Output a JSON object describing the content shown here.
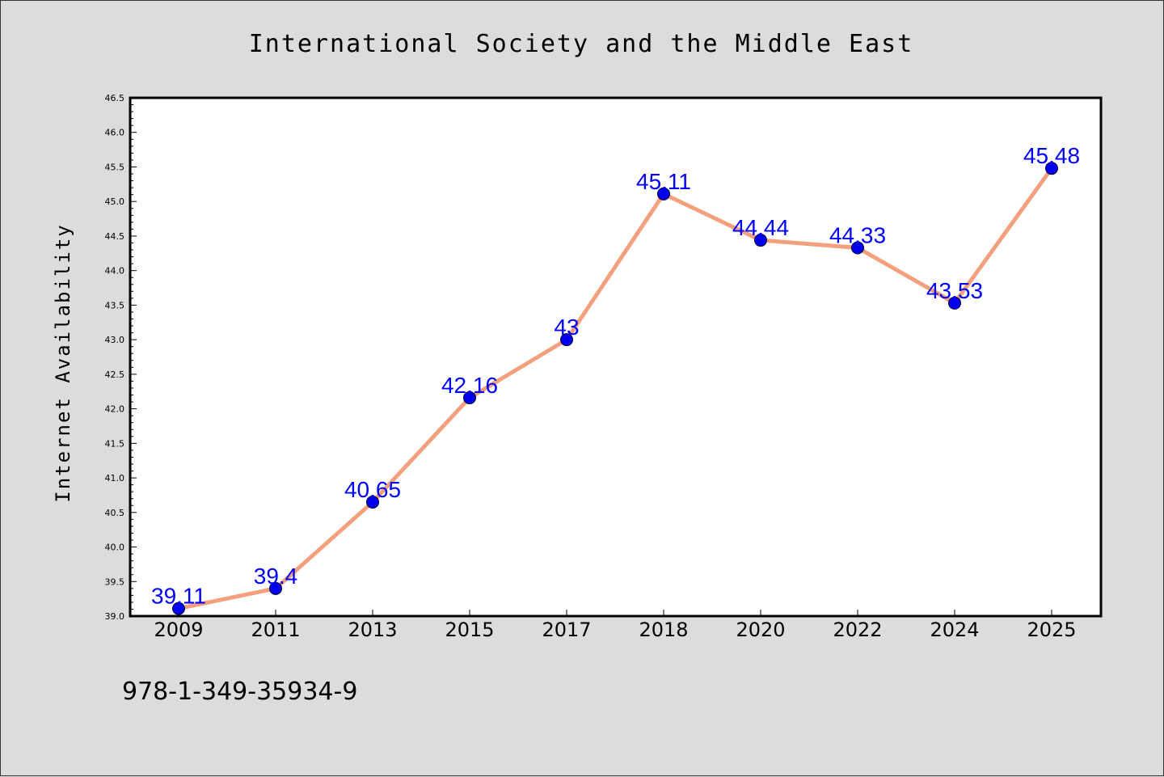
{
  "chart_data": {
    "type": "line",
    "title": "International Society and the Middle East",
    "ylabel": "Internet Availability",
    "xlabel": "",
    "categories": [
      "2009",
      "2011",
      "2013",
      "2015",
      "2017",
      "2018",
      "2020",
      "2022",
      "2024",
      "2025"
    ],
    "values": [
      39.11,
      39.4,
      40.65,
      42.16,
      43,
      45.11,
      44.44,
      44.33,
      43.53,
      45.48
    ],
    "data_labels": [
      "39.11",
      "39.4",
      "40.65",
      "42.16",
      "43",
      "45.11",
      "44.44",
      "44.33",
      "43.53",
      "45.48"
    ],
    "ylim": [
      39.0,
      46.5
    ],
    "y_ticks": [
      "39.0",
      "39.5",
      "40.0",
      "40.5",
      "41.0",
      "41.5",
      "42.0",
      "42.5",
      "43.0",
      "43.5",
      "44.0",
      "44.5",
      "45.0",
      "45.5",
      "46.0",
      "46.5"
    ],
    "grid": false,
    "legend": "none",
    "colors": {
      "line": "#f4a07e",
      "marker": "#0000ee",
      "label": "#0000ff",
      "plot_background": "#ffffff",
      "figure_background": "#dcdcdc"
    }
  },
  "footer": {
    "code": "978-1-349-35934-9"
  }
}
